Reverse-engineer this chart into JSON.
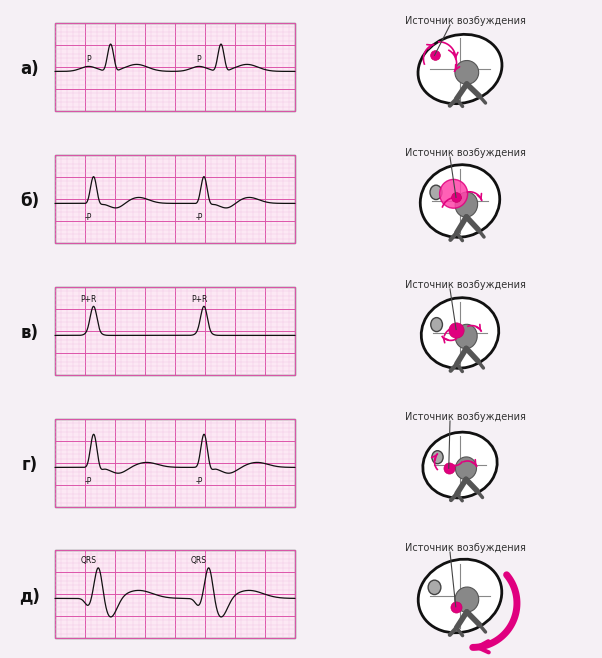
{
  "bg_color": "#f5f0f5",
  "panel_bg": "#fce8f4",
  "grid_major_color": "#dd55aa",
  "grid_minor_color": "#f0bbe0",
  "ecg_color": "#111111",
  "pink_accent": "#e0007f",
  "source_dot_color": "#e0007f",
  "labels": [
    "а)",
    "б)",
    "в)",
    "г)",
    "д)"
  ],
  "ecg_annotations": [
    [
      "P",
      "P"
    ],
    [
      "-P",
      "-P"
    ],
    [
      "P+R",
      "P+R"
    ],
    [
      "-P",
      "-P"
    ],
    [
      "QRS",
      "QRS"
    ]
  ],
  "source_text": "Источник возбуждения",
  "figsize": [
    6.02,
    6.58
  ]
}
